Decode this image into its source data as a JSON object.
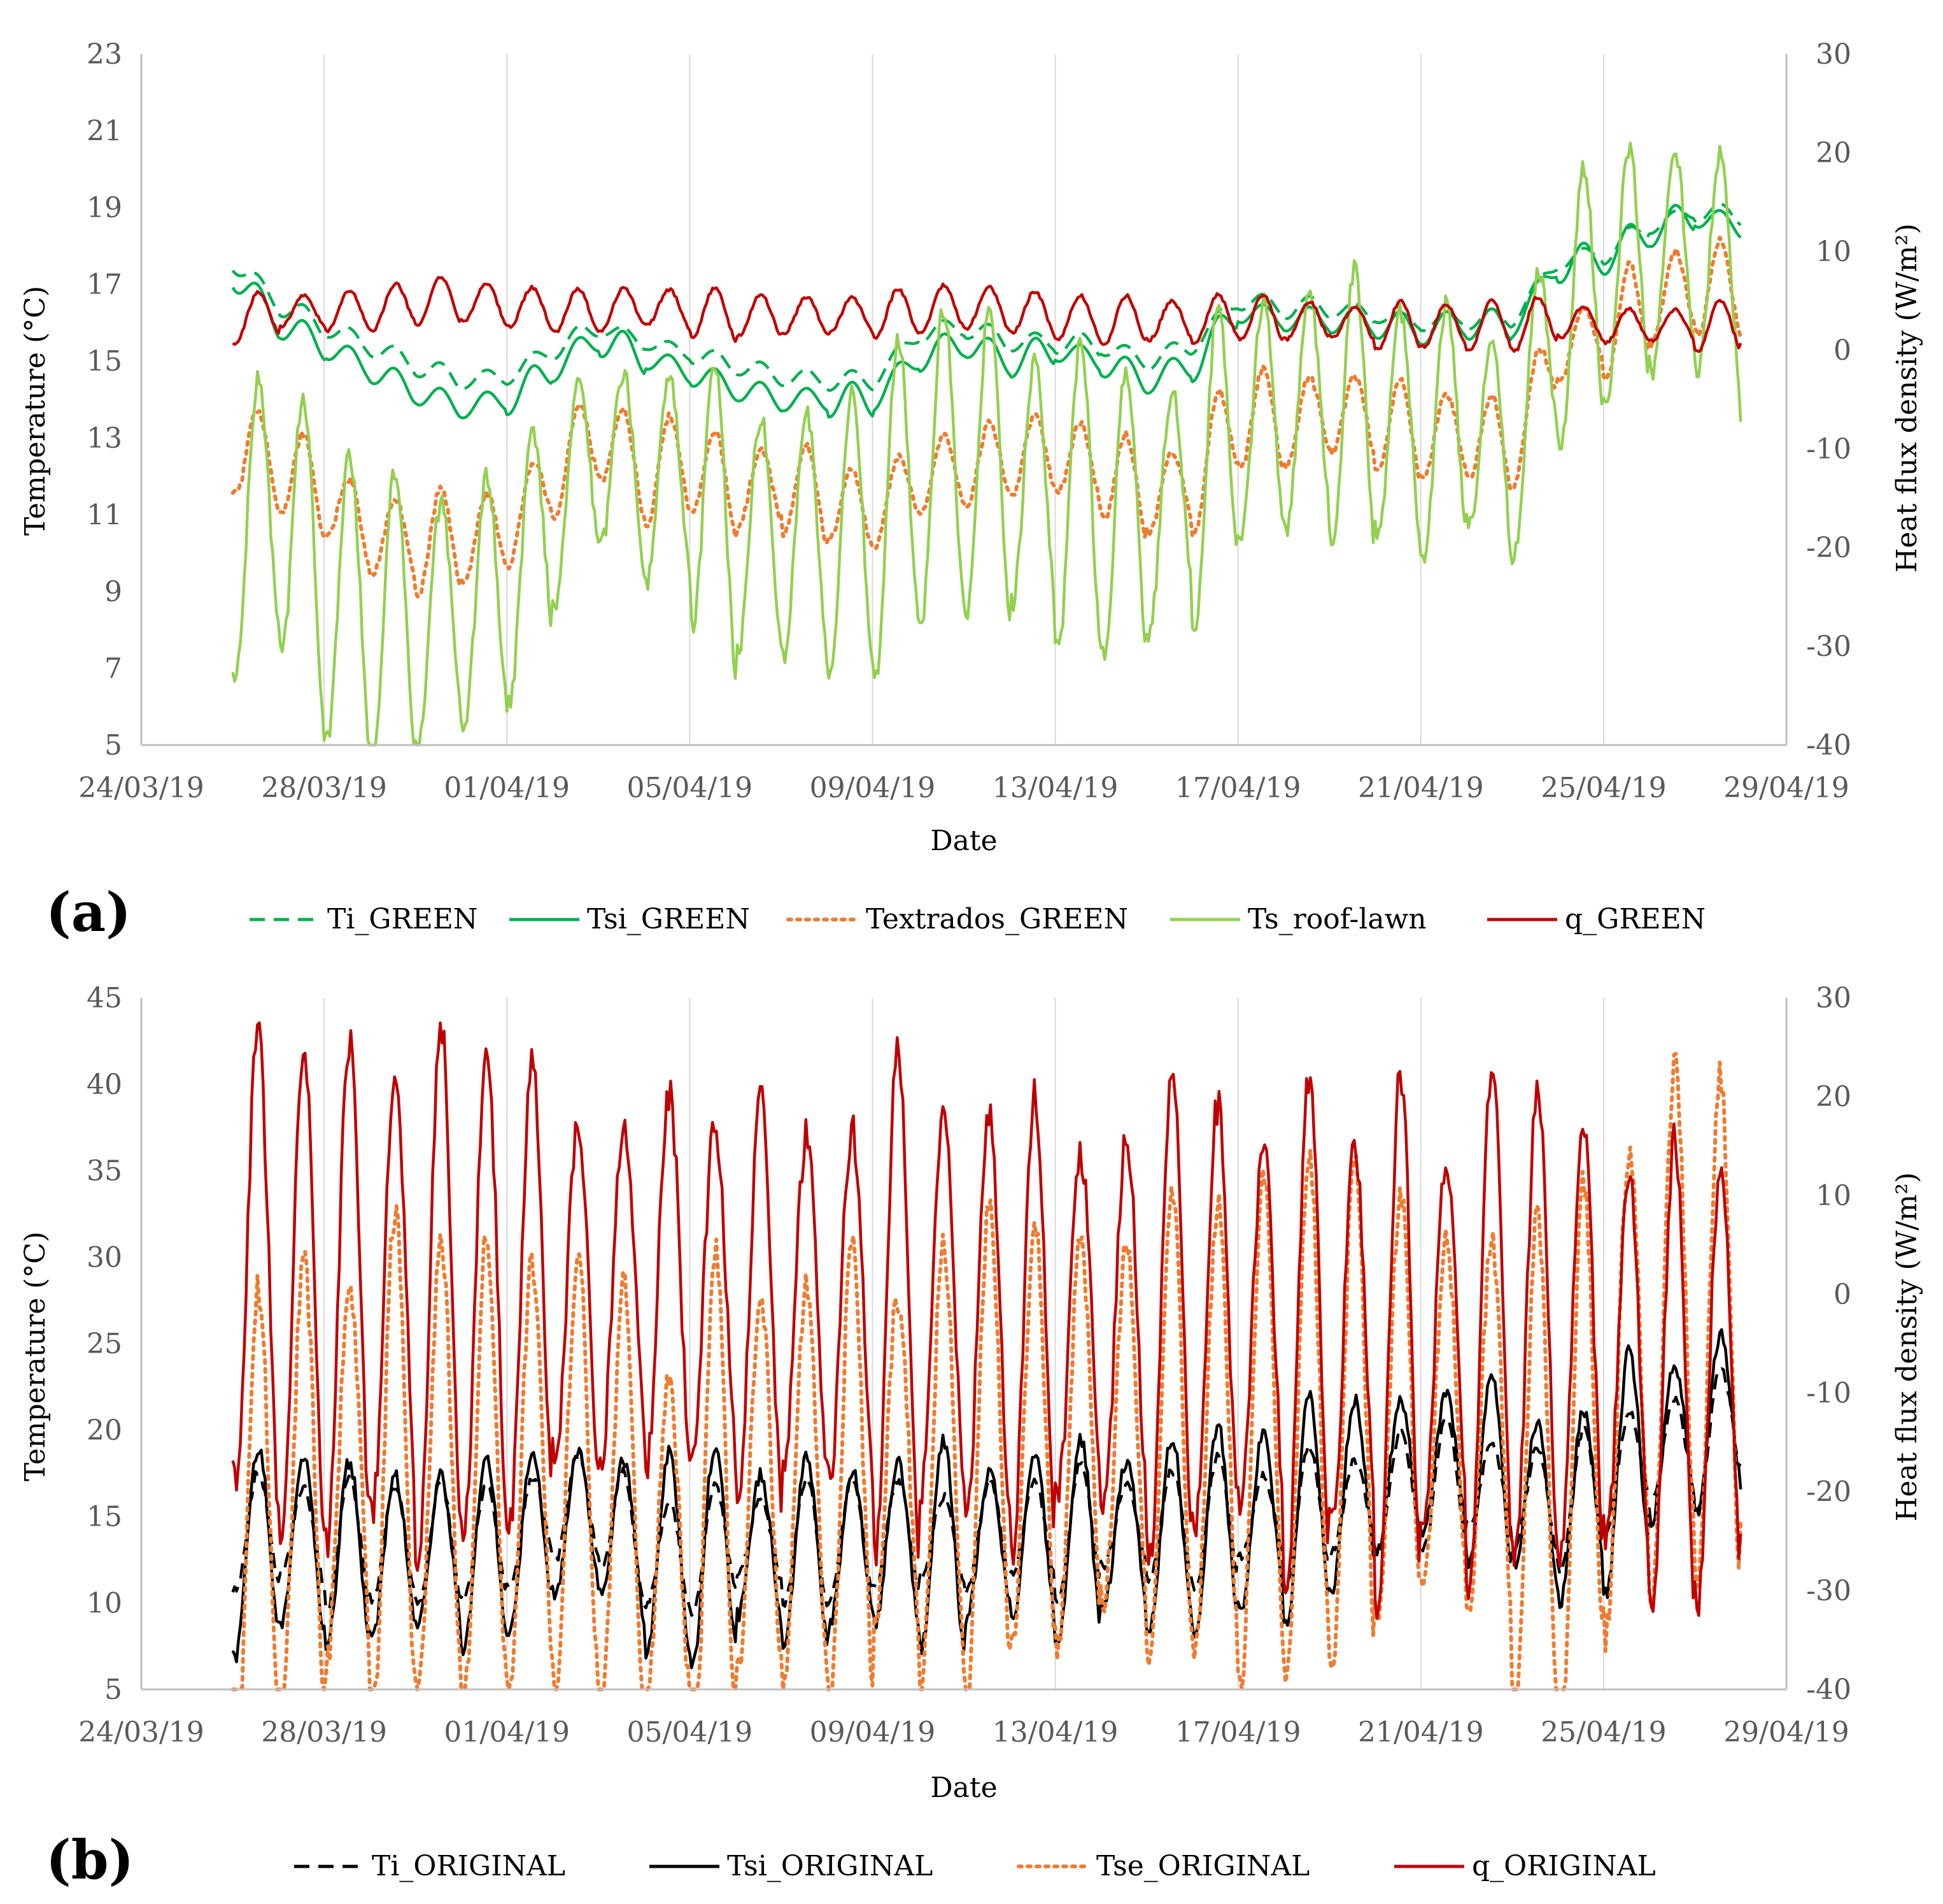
{
  "chart_data": [
    {
      "panel_label": "(a)",
      "type": "line",
      "xlabel": "Date",
      "ylabel_left": "Temperature (°C)",
      "ylabel_right": "Heat flux density (W/m²)",
      "ylim_left": [
        5,
        23
      ],
      "yticks_left": [
        "5",
        "7",
        "9",
        "11",
        "13",
        "15",
        "17",
        "19",
        "21",
        "23"
      ],
      "ylim_right": [
        -40,
        30
      ],
      "yticks_right": [
        "-40",
        "-30",
        "-20",
        "-10",
        "0",
        "10",
        "20",
        "30"
      ],
      "xlim_days": [
        0,
        36
      ],
      "x_tick_labels": [
        "24/03/19",
        "28/03/19",
        "01/04/19",
        "05/04/19",
        "09/04/19",
        "13/04/19",
        "17/04/19",
        "21/04/19",
        "25/04/19",
        "29/04/19"
      ],
      "x_units": "days since 24/03/19",
      "series": [
        {
          "name": "Ti_GREEN",
          "axis": "left",
          "style": "dashed",
          "color": "#00B050",
          "x": [
            2,
            3,
            4,
            5,
            6,
            7,
            8,
            9,
            10,
            11,
            12,
            13,
            14,
            15,
            16,
            17,
            18,
            19,
            20,
            21,
            22,
            23,
            24,
            25,
            26,
            27,
            28,
            29,
            30,
            31,
            32,
            33,
            34,
            35
          ],
          "values": [
            17.6,
            16.5,
            15.9,
            15.4,
            14.9,
            14.5,
            14.6,
            15.3,
            15.9,
            15.5,
            15.2,
            14.9,
            14.6,
            14.5,
            14.5,
            15.7,
            15.9,
            15.5,
            15.5,
            15.4,
            15.0,
            15.4,
            16.6,
            16.4,
            16.4,
            16.2,
            16.0,
            16.1,
            16.1,
            17.6,
            17.8,
            18.5,
            18.9,
            18.8
          ],
          "daily_swing": 0.5
        },
        {
          "name": "Tsi_GREEN",
          "axis": "left",
          "style": "solid",
          "color": "#00B050",
          "x": [
            2,
            3,
            4,
            5,
            6,
            7,
            8,
            9,
            10,
            11,
            12,
            13,
            14,
            15,
            16,
            17,
            18,
            19,
            20,
            21,
            22,
            23,
            24,
            25,
            26,
            27,
            28,
            29,
            30,
            31,
            32,
            33,
            34,
            35
          ],
          "values": [
            17.3,
            16.0,
            15.4,
            14.8,
            14.2,
            13.8,
            14.0,
            14.8,
            15.6,
            15.1,
            14.7,
            14.3,
            14.0,
            14.0,
            14.0,
            15.1,
            15.5,
            15.0,
            15.3,
            15.0,
            14.5,
            14.9,
            16.3,
            16.1,
            16.1,
            16.0,
            15.8,
            16.0,
            15.9,
            17.5,
            17.7,
            18.4,
            18.8,
            18.5
          ],
          "daily_swing": 0.8
        },
        {
          "name": "Textrados_GREEN",
          "axis": "left",
          "style": "dotted",
          "color": "#ED7D31",
          "x": [
            2,
            3,
            4,
            5,
            6,
            7,
            8,
            9,
            10,
            11,
            12,
            13,
            14,
            15,
            16,
            17,
            18,
            19,
            20,
            21,
            22,
            23,
            24,
            25,
            26,
            27,
            28,
            29,
            30,
            31,
            32,
            33,
            34,
            35
          ],
          "values": [
            12.8,
            12.3,
            11.5,
            10.5,
            10.3,
            10.3,
            10.6,
            12.0,
            13.2,
            12.0,
            12.4,
            11.6,
            11.8,
            11.4,
            11.0,
            12.0,
            12.2,
            12.5,
            12.6,
            12.2,
            11.5,
            11.8,
            13.6,
            13.3,
            13.7,
            13.5,
            13.0,
            13.2,
            12.7,
            15.3,
            15.8,
            16.5,
            17.0,
            16.8
          ],
          "daily_swing": 2.4
        },
        {
          "name": "Ts_roof-lawn",
          "axis": "left",
          "style": "solid",
          "color": "#92D050",
          "x": [
            2,
            3,
            4,
            5,
            6,
            7,
            8,
            9,
            10,
            11,
            12,
            13,
            14,
            15,
            16,
            17,
            18,
            19,
            20,
            21,
            22,
            23,
            24,
            25,
            26,
            27,
            28,
            29,
            30,
            31,
            32,
            33,
            34,
            35
          ],
          "values": [
            10.2,
            11.5,
            9.0,
            8.5,
            8.0,
            8.5,
            9.0,
            11.0,
            12.8,
            11.8,
            12.0,
            10.5,
            10.5,
            10.5,
            10.6,
            12.2,
            12.5,
            12.0,
            11.6,
            11.2,
            10.8,
            11.8,
            13.4,
            13.6,
            14.0,
            13.5,
            13.0,
            13.5,
            12.5,
            16.0,
            17.0,
            17.5,
            17.8,
            16.8
          ],
          "daily_swing": 7.0
        },
        {
          "name": "q_GREEN",
          "axis": "right",
          "style": "solid",
          "color": "#C00000",
          "x": [
            2,
            3,
            4,
            5,
            6,
            7,
            8,
            9,
            10,
            11,
            12,
            13,
            14,
            15,
            16,
            17,
            18,
            19,
            20,
            21,
            22,
            23,
            24,
            25,
            26,
            27,
            28,
            29,
            30,
            31,
            32,
            33,
            34,
            35
          ],
          "values": [
            3.0,
            4.0,
            4.0,
            4.0,
            5.0,
            5.0,
            4.5,
            4.0,
            4.0,
            4.5,
            4.0,
            3.5,
            3.5,
            3.5,
            3.5,
            4.0,
            4.5,
            4.0,
            3.5,
            3.0,
            3.0,
            3.0,
            3.5,
            3.0,
            3.0,
            2.5,
            2.5,
            2.5,
            2.5,
            3.0,
            2.5,
            2.5,
            2.5,
            2.5
          ],
          "daily_swing": 4.5
        }
      ],
      "legend": [
        "Ti_GREEN",
        "Tsi_GREEN",
        "Textrados_GREEN",
        "Ts_roof-lawn",
        "q_GREEN"
      ]
    },
    {
      "panel_label": "(b)",
      "type": "line",
      "xlabel": "Date",
      "ylabel_left": "Temperature (°C)",
      "ylabel_right": "Heat flux density (W/m²)",
      "ylim_left": [
        5,
        45
      ],
      "yticks_left": [
        "5",
        "10",
        "15",
        "20",
        "25",
        "30",
        "35",
        "40",
        "45"
      ],
      "ylim_right": [
        -40,
        30
      ],
      "yticks_right": [
        "-40",
        "-30",
        "-20",
        "-10",
        "0",
        "10",
        "20",
        "30"
      ],
      "xlim_days": [
        0,
        36
      ],
      "x_tick_labels": [
        "24/03/19",
        "28/03/19",
        "01/04/19",
        "05/04/19",
        "09/04/19",
        "13/04/19",
        "17/04/19",
        "21/04/19",
        "25/04/19",
        "29/04/19"
      ],
      "x_units": "days since 24/03/19",
      "series": [
        {
          "name": "Ti_ORIGINAL",
          "axis": "left",
          "style": "dashed",
          "color": "#000000",
          "x": [
            2,
            3,
            4,
            5,
            6,
            7,
            8,
            9,
            10,
            11,
            12,
            13,
            14,
            15,
            16,
            17,
            18,
            19,
            20,
            21,
            22,
            23,
            24,
            25,
            26,
            27,
            28,
            29,
            30,
            31,
            32,
            33,
            34,
            35
          ],
          "values": [
            14.0,
            14.5,
            13.5,
            13.5,
            13.5,
            13.5,
            13.5,
            15.5,
            15.5,
            13.0,
            12.5,
            14.0,
            13.5,
            13.5,
            14.0,
            14.0,
            13.5,
            14.5,
            14.0,
            14.5,
            14.5,
            14.5,
            15.0,
            15.0,
            15.5,
            16.0,
            17.0,
            17.0,
            16.5,
            15.5,
            17.0,
            19.0,
            19.0,
            21.0
          ],
          "daily_swing": 6.5
        },
        {
          "name": "Tsi_ORIGINAL",
          "axis": "left",
          "style": "solid",
          "color": "#000000",
          "x": [
            2,
            3,
            4,
            5,
            6,
            7,
            8,
            9,
            10,
            11,
            12,
            13,
            14,
            15,
            16,
            17,
            18,
            19,
            20,
            21,
            22,
            23,
            24,
            25,
            26,
            27,
            28,
            29,
            30,
            31,
            32,
            33,
            34,
            35
          ],
          "values": [
            12.5,
            14.0,
            13.0,
            12.5,
            13.0,
            13.0,
            13.0,
            14.5,
            15.0,
            13.0,
            12.5,
            13.5,
            13.0,
            13.0,
            13.5,
            13.5,
            13.0,
            14.0,
            13.5,
            14.0,
            14.0,
            14.0,
            14.5,
            15.0,
            16.0,
            17.0,
            18.0,
            18.0,
            17.0,
            15.0,
            17.0,
            19.0,
            20.0,
            21.5
          ],
          "daily_swing": 11.0
        },
        {
          "name": "Tse_ORIGINAL",
          "axis": "left",
          "style": "dotted",
          "color": "#ED7D31",
          "x": [
            2,
            3,
            4,
            5,
            6,
            7,
            8,
            9,
            10,
            11,
            12,
            13,
            14,
            15,
            16,
            17,
            18,
            19,
            20,
            21,
            22,
            23,
            24,
            25,
            26,
            27,
            28,
            29,
            30,
            31,
            32,
            33,
            34,
            35
          ],
          "values": [
            13.0,
            16.0,
            17.0,
            18.0,
            18.0,
            18.0,
            17.0,
            18.0,
            17.0,
            14.0,
            13.0,
            17.0,
            17.0,
            17.0,
            18.0,
            18.0,
            18.0,
            20.0,
            19.0,
            20.0,
            20.0,
            20.0,
            20.0,
            21.0,
            21.0,
            21.0,
            21.0,
            21.0,
            19.0,
            16.0,
            21.0,
            25.0,
            27.0,
            24.0
          ],
          "daily_swing": 26.0
        },
        {
          "name": "q_ORIGINAL",
          "axis": "right",
          "style": "solid",
          "color": "#C00000",
          "x": [
            2,
            3,
            4,
            5,
            6,
            7,
            8,
            9,
            10,
            11,
            12,
            13,
            14,
            15,
            16,
            17,
            18,
            19,
            20,
            21,
            22,
            23,
            24,
            25,
            26,
            27,
            28,
            29,
            30,
            31,
            32,
            33,
            34,
            35
          ],
          "values": [
            5.0,
            0.0,
            0.0,
            0.0,
            0.0,
            0.0,
            0.0,
            0.0,
            -1.0,
            2.0,
            1.0,
            0.0,
            -1.0,
            -1.0,
            -1.0,
            -1.0,
            -1.0,
            -3.0,
            -3.0,
            -3.0,
            -3.0,
            -2.0,
            -3.0,
            -4.0,
            -4.0,
            -5.0,
            -5.0,
            -4.0,
            -3.0,
            -4.0,
            -6.0,
            -8.0,
            -10.0,
            -8.0
          ],
          "daily_swing": 46.0
        }
      ],
      "legend": [
        "Ti_ORIGINAL",
        "Tsi_ORIGINAL",
        "Tse_ORIGINAL",
        "q_ORIGINAL"
      ]
    }
  ]
}
